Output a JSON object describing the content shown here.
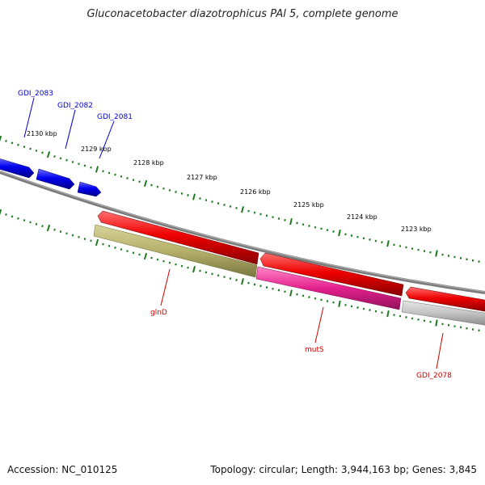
{
  "header": {
    "title": "Gluconacetobacter diazotrophicus PAl 5, complete genome"
  },
  "footer": {
    "accession": "Accession: NC_010125",
    "summary": "Topology: circular; Length: 3,944,163 bp; Genes: 3,845"
  },
  "ruler": {
    "tick_color": "#1e7a1e",
    "labels": [
      "2130 kbp",
      "2129 kbp",
      "2128 kbp",
      "2127 kbp",
      "2126 kbp",
      "2125 kbp",
      "2124 kbp",
      "2123 kbp"
    ]
  },
  "genes": {
    "forward_color": "#0000dd",
    "reverse_color": "#e00000",
    "gene_labels": [
      {
        "id": "gdi-2083",
        "text": "GDI_2083",
        "color": "#0000cc"
      },
      {
        "id": "gdi-2082",
        "text": "GDI_2082",
        "color": "#0000cc"
      },
      {
        "id": "gdi-2081",
        "text": "GDI_2081",
        "color": "#0000cc"
      },
      {
        "id": "glnd",
        "text": "glnD",
        "color": "#cc0000"
      },
      {
        "id": "muts",
        "text": "mutS",
        "color": "#cc0000"
      },
      {
        "id": "gdi-2078",
        "text": "GDI_2078",
        "color": "#cc0000"
      }
    ]
  },
  "cog_colors": {
    "glnd_band": "#b8b46a",
    "muts_band": "#e0208a",
    "gdi2078_band": "#c0c0c0"
  }
}
